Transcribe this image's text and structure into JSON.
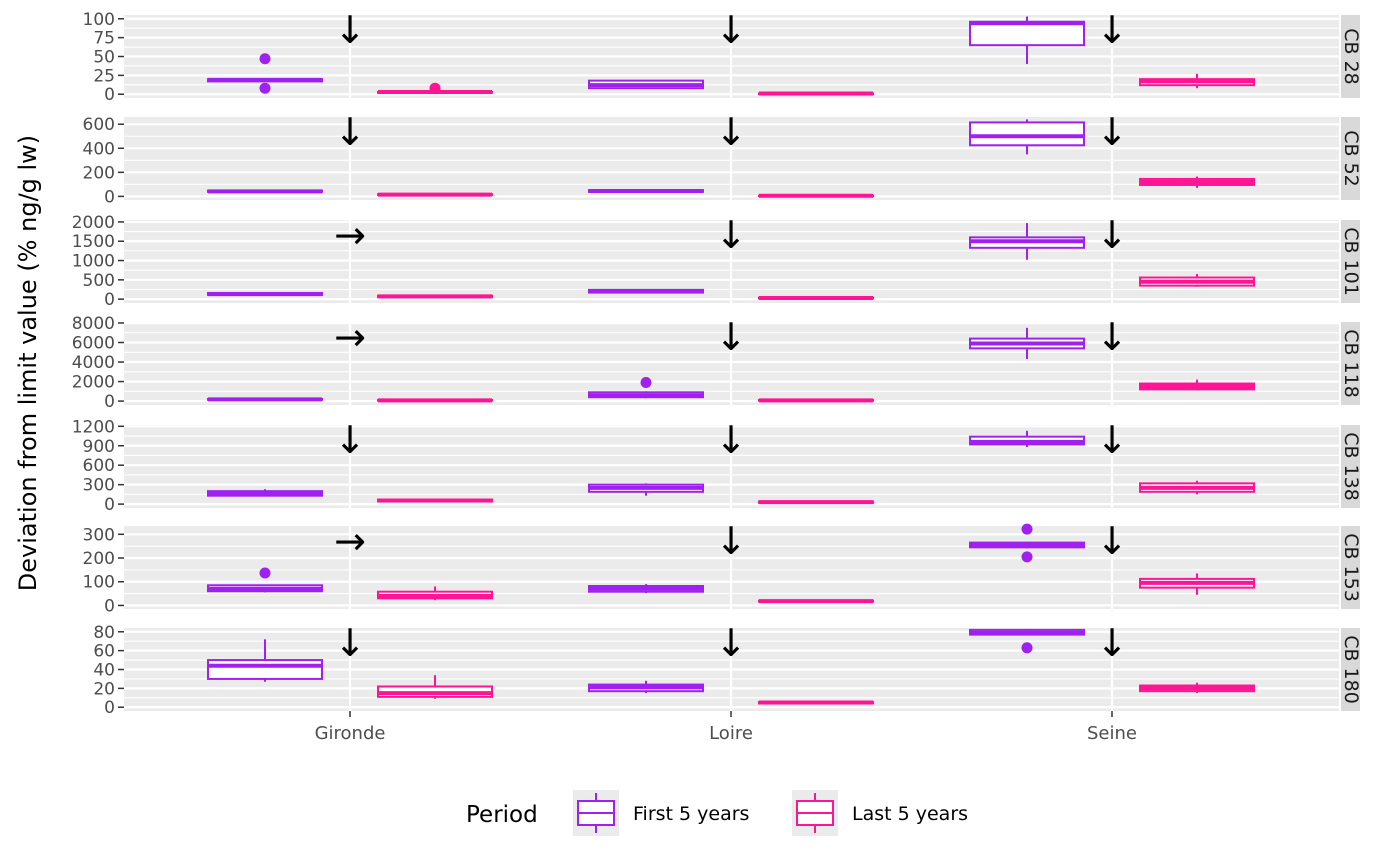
{
  "chart_data": {
    "type": "box",
    "ylabel": "Deviation from limit value (% ng/g lw)",
    "xlabel": "",
    "categories": [
      "Gironde",
      "Loire",
      "Seine"
    ],
    "legend": {
      "title": "Period",
      "position": "bottom",
      "items": [
        {
          "name": "First 5 years",
          "color": "#A020F0"
        },
        {
          "name": "Last 5 years",
          "color": "#FF1493"
        }
      ]
    },
    "grid": true,
    "arrow_glyphs": {
      "down": "↓",
      "right": "→"
    },
    "panels": [
      {
        "label": "CB 28",
        "ylim": [
          -5,
          105
        ],
        "ticks": [
          0,
          25,
          50,
          75,
          100
        ],
        "tick_labels": [
          "0",
          "25",
          "50",
          "75",
          "100"
        ],
        "trends": [
          "down",
          "down",
          "down"
        ],
        "boxes": [
          {
            "category": "Gironde",
            "series": "First 5 years",
            "min": 17,
            "q1": 17,
            "median": 19,
            "q3": 20,
            "max": 21,
            "outliers": [
              8,
              47
            ]
          },
          {
            "category": "Gironde",
            "series": "Last 5 years",
            "min": 1,
            "q1": 2,
            "median": 3,
            "q3": 3,
            "max": 4,
            "outliers": [
              8
            ]
          },
          {
            "category": "Loire",
            "series": "First 5 years",
            "min": 8,
            "q1": 8,
            "median": 12,
            "q3": 18,
            "max": 18,
            "outliers": []
          },
          {
            "category": "Loire",
            "series": "Last 5 years",
            "min": 0,
            "q1": 0,
            "median": 1,
            "q3": 1,
            "max": 2,
            "outliers": []
          },
          {
            "category": "Seine",
            "series": "First 5 years",
            "min": 40,
            "q1": 65,
            "median": 94,
            "q3": 96,
            "max": 103,
            "outliers": []
          },
          {
            "category": "Seine",
            "series": "Last 5 years",
            "min": 8,
            "q1": 12,
            "median": 17,
            "q3": 20,
            "max": 27,
            "outliers": []
          }
        ]
      },
      {
        "label": "CB 52",
        "ylim": [
          -30,
          660
        ],
        "ticks": [
          0,
          200,
          400,
          600
        ],
        "tick_labels": [
          "0",
          "200",
          "400",
          "600"
        ],
        "trends": [
          "down",
          "down",
          "down"
        ],
        "boxes": [
          {
            "category": "Gironde",
            "series": "First 5 years",
            "min": 35,
            "q1": 38,
            "median": 42,
            "q3": 48,
            "max": 50,
            "outliers": []
          },
          {
            "category": "Gironde",
            "series": "Last 5 years",
            "min": 10,
            "q1": 12,
            "median": 15,
            "q3": 18,
            "max": 20,
            "outliers": []
          },
          {
            "category": "Loire",
            "series": "First 5 years",
            "min": 35,
            "q1": 38,
            "median": 45,
            "q3": 52,
            "max": 55,
            "outliers": []
          },
          {
            "category": "Loire",
            "series": "Last 5 years",
            "min": 2,
            "q1": 4,
            "median": 5,
            "q3": 7,
            "max": 8,
            "outliers": []
          },
          {
            "category": "Seine",
            "series": "First 5 years",
            "min": 350,
            "q1": 425,
            "median": 500,
            "q3": 615,
            "max": 640,
            "outliers": []
          },
          {
            "category": "Seine",
            "series": "Last 5 years",
            "min": 70,
            "q1": 95,
            "median": 120,
            "q3": 145,
            "max": 165,
            "outliers": []
          }
        ]
      },
      {
        "label": "CB 101",
        "ylim": [
          -100,
          2050
        ],
        "ticks": [
          0,
          500,
          1000,
          1500,
          2000
        ],
        "tick_labels": [
          "0",
          "500",
          "1000",
          "1500",
          "2000"
        ],
        "trends": [
          "right",
          "down",
          "down"
        ],
        "boxes": [
          {
            "category": "Gironde",
            "series": "First 5 years",
            "min": 100,
            "q1": 110,
            "median": 130,
            "q3": 160,
            "max": 175,
            "outliers": []
          },
          {
            "category": "Gironde",
            "series": "Last 5 years",
            "min": 40,
            "q1": 50,
            "median": 70,
            "q3": 90,
            "max": 110,
            "outliers": []
          },
          {
            "category": "Loire",
            "series": "First 5 years",
            "min": 150,
            "q1": 170,
            "median": 210,
            "q3": 240,
            "max": 260,
            "outliers": []
          },
          {
            "category": "Loire",
            "series": "Last 5 years",
            "min": 15,
            "q1": 20,
            "median": 30,
            "q3": 40,
            "max": 50,
            "outliers": []
          },
          {
            "category": "Seine",
            "series": "First 5 years",
            "min": 1020,
            "q1": 1330,
            "median": 1500,
            "q3": 1600,
            "max": 1970,
            "outliers": []
          },
          {
            "category": "Seine",
            "series": "Last 5 years",
            "min": 320,
            "q1": 350,
            "median": 450,
            "q3": 560,
            "max": 650,
            "outliers": []
          }
        ]
      },
      {
        "label": "CB 118",
        "ylim": [
          -400,
          8100
        ],
        "ticks": [
          0,
          2000,
          4000,
          6000,
          8000
        ],
        "tick_labels": [
          "0",
          "2000",
          "4000",
          "6000",
          "8000"
        ],
        "trends": [
          "right",
          "down",
          "down"
        ],
        "boxes": [
          {
            "category": "Gironde",
            "series": "First 5 years",
            "min": 100,
            "q1": 130,
            "median": 170,
            "q3": 220,
            "max": 250,
            "outliers": []
          },
          {
            "category": "Gironde",
            "series": "Last 5 years",
            "min": 40,
            "q1": 50,
            "median": 80,
            "q3": 110,
            "max": 130,
            "outliers": []
          },
          {
            "category": "Loire",
            "series": "First 5 years",
            "min": 300,
            "q1": 400,
            "median": 600,
            "q3": 900,
            "max": 1000,
            "outliers": [
              1900
            ]
          },
          {
            "category": "Loire",
            "series": "Last 5 years",
            "min": 40,
            "q1": 50,
            "median": 80,
            "q3": 110,
            "max": 130,
            "outliers": []
          },
          {
            "category": "Seine",
            "series": "First 5 years",
            "min": 4300,
            "q1": 5400,
            "median": 5900,
            "q3": 6400,
            "max": 7500,
            "outliers": []
          },
          {
            "category": "Seine",
            "series": "Last 5 years",
            "min": 1100,
            "q1": 1200,
            "median": 1500,
            "q3": 1800,
            "max": 2200,
            "outliers": []
          }
        ]
      },
      {
        "label": "CB 138",
        "ylim": [
          -60,
          1220
        ],
        "ticks": [
          0,
          300,
          600,
          900,
          1200
        ],
        "tick_labels": [
          "0",
          "300",
          "600",
          "900",
          "1200"
        ],
        "trends": [
          "down",
          "down",
          "down"
        ],
        "boxes": [
          {
            "category": "Gironde",
            "series": "First 5 years",
            "min": 120,
            "q1": 130,
            "median": 170,
            "q3": 200,
            "max": 230,
            "outliers": []
          },
          {
            "category": "Gironde",
            "series": "Last 5 years",
            "min": 30,
            "q1": 40,
            "median": 55,
            "q3": 70,
            "max": 80,
            "outliers": []
          },
          {
            "category": "Loire",
            "series": "First 5 years",
            "min": 130,
            "q1": 190,
            "median": 250,
            "q3": 300,
            "max": 320,
            "outliers": []
          },
          {
            "category": "Loire",
            "series": "Last 5 years",
            "min": 15,
            "q1": 20,
            "median": 30,
            "q3": 40,
            "max": 50,
            "outliers": []
          },
          {
            "category": "Seine",
            "series": "First 5 years",
            "min": 880,
            "q1": 920,
            "median": 960,
            "q3": 1040,
            "max": 1130,
            "outliers": []
          },
          {
            "category": "Seine",
            "series": "Last 5 years",
            "min": 150,
            "q1": 190,
            "median": 250,
            "q3": 320,
            "max": 360,
            "outliers": []
          }
        ]
      },
      {
        "label": "CB 153",
        "ylim": [
          -15,
          335
        ],
        "ticks": [
          0,
          100,
          200,
          300
        ],
        "tick_labels": [
          "0",
          "100",
          "200",
          "300"
        ],
        "trends": [
          "right",
          "down",
          "down"
        ],
        "boxes": [
          {
            "category": "Gironde",
            "series": "First 5 years",
            "min": 55,
            "q1": 60,
            "median": 70,
            "q3": 85,
            "max": 88,
            "outliers": [
              137
            ]
          },
          {
            "category": "Gironde",
            "series": "Last 5 years",
            "min": 22,
            "q1": 30,
            "median": 40,
            "q3": 58,
            "max": 80,
            "outliers": []
          },
          {
            "category": "Loire",
            "series": "First 5 years",
            "min": 52,
            "q1": 58,
            "median": 70,
            "q3": 82,
            "max": 90,
            "outliers": []
          },
          {
            "category": "Loire",
            "series": "Last 5 years",
            "min": 14,
            "q1": 16,
            "median": 18,
            "q3": 20,
            "max": 22,
            "outliers": []
          },
          {
            "category": "Seine",
            "series": "First 5 years",
            "min": 240,
            "q1": 245,
            "median": 255,
            "q3": 265,
            "max": 268,
            "outliers": [
              205,
              322
            ]
          },
          {
            "category": "Seine",
            "series": "Last 5 years",
            "min": 45,
            "q1": 75,
            "median": 95,
            "q3": 112,
            "max": 135,
            "outliers": []
          }
        ]
      },
      {
        "label": "CB 180",
        "ylim": [
          -4,
          84
        ],
        "ticks": [
          0,
          20,
          40,
          60,
          80
        ],
        "tick_labels": [
          "0",
          "20",
          "40",
          "60",
          "80"
        ],
        "trends": [
          "down",
          "down",
          "down"
        ],
        "boxes": [
          {
            "category": "Gironde",
            "series": "First 5 years",
            "min": 27,
            "q1": 30,
            "median": 44,
            "q3": 50,
            "max": 72,
            "outliers": []
          },
          {
            "category": "Gironde",
            "series": "Last 5 years",
            "min": 9,
            "q1": 11,
            "median": 15,
            "q3": 22,
            "max": 34,
            "outliers": []
          },
          {
            "category": "Loire",
            "series": "First 5 years",
            "min": 15,
            "q1": 17,
            "median": 21,
            "q3": 24,
            "max": 28,
            "outliers": []
          },
          {
            "category": "Loire",
            "series": "Last 5 years",
            "min": 3,
            "q1": 4,
            "median": 5,
            "q3": 5.5,
            "max": 6,
            "outliers": []
          },
          {
            "category": "Seine",
            "series": "First 5 years",
            "min": 76,
            "q1": 77,
            "median": 79,
            "q3": 82,
            "max": 83,
            "outliers": [
              63
            ]
          },
          {
            "category": "Seine",
            "series": "Last 5 years",
            "min": 15,
            "q1": 17,
            "median": 20,
            "q3": 23,
            "max": 26,
            "outliers": []
          }
        ]
      }
    ]
  }
}
